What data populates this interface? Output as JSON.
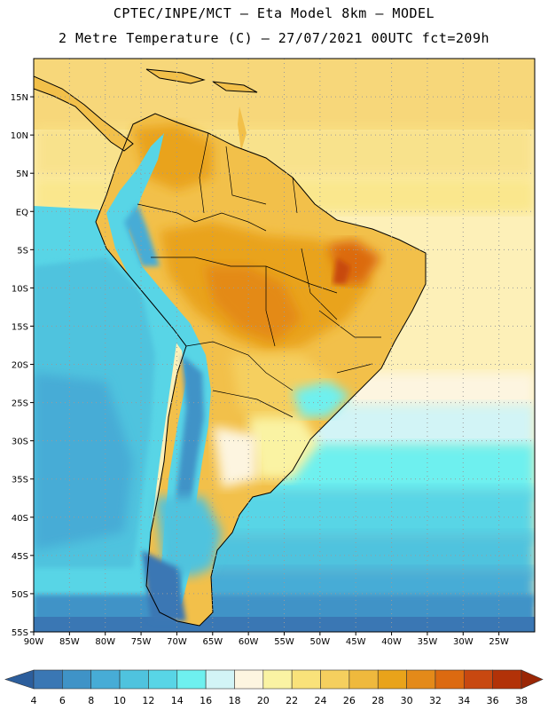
{
  "title": {
    "line1": "CPTEC/INPE/MCT –  Eta Model 8km – MODEL",
    "line2": "2 Metre Temperature (C) – 27/07/2021 00UTC fct=209h"
  },
  "map": {
    "lat_labels": [
      "15N",
      "10N",
      "5N",
      "EQ",
      "5S",
      "10S",
      "15S",
      "20S",
      "25S",
      "30S",
      "35S",
      "40S",
      "45S",
      "50S",
      "55S"
    ],
    "lon_labels": [
      "90W",
      "85W",
      "80W",
      "75W",
      "70W",
      "65W",
      "60W",
      "55W",
      "50W",
      "45W",
      "40W",
      "35W",
      "30W",
      "25W"
    ],
    "lat_values": [
      15,
      10,
      5,
      0,
      -5,
      -10,
      -15,
      -20,
      -25,
      -30,
      -35,
      -40,
      -45,
      -50,
      -55
    ],
    "lon_values": [
      -90,
      -85,
      -80,
      -75,
      -70,
      -65,
      -60,
      -55,
      -50,
      -45,
      -40,
      -35,
      -30,
      -25
    ],
    "extent": {
      "lon_min": -90,
      "lon_max": -20,
      "lat_min": -55,
      "lat_max": 20
    }
  },
  "colorbar": {
    "labels": [
      "4",
      "6",
      "8",
      "10",
      "12",
      "14",
      "16",
      "18",
      "20",
      "22",
      "24",
      "26",
      "28",
      "30",
      "32",
      "34",
      "36",
      "38"
    ],
    "colors": [
      "#2c5e9c",
      "#3a77b4",
      "#3f93c7",
      "#47acd6",
      "#4fc3de",
      "#58d5e6",
      "#6ef0ef",
      "#d2f4f6",
      "#fdf5e0",
      "#faf3a3",
      "#f9e27a",
      "#f5cf5e",
      "#efb93d",
      "#e9a31a",
      "#e48a19",
      "#dc6a10",
      "#c84810",
      "#b23208",
      "#9a2605"
    ]
  }
}
